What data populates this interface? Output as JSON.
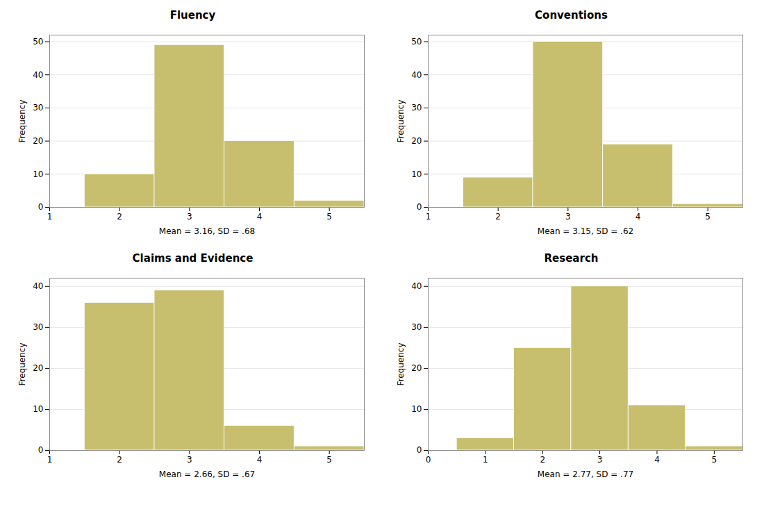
{
  "chart_data": [
    {
      "type": "histogram",
      "title": "Fluency",
      "xlabel": "Mean = 3.16, SD = .68",
      "ylabel": "Frequency",
      "color": "#C8BF6E",
      "bins": [
        1.5,
        2.5,
        3.5,
        4.5,
        5.5
      ],
      "counts": [
        10,
        49,
        20,
        2
      ],
      "xlim": [
        1,
        5.5
      ],
      "ylim": [
        0,
        52
      ],
      "yticks": [
        0,
        10,
        20,
        30,
        40,
        50
      ],
      "xticks": [
        1,
        2,
        3,
        4,
        5
      ],
      "grid": true
    },
    {
      "type": "histogram",
      "title": "Conventions",
      "xlabel": "Mean = 3.15, SD = .62",
      "ylabel": "Frequency",
      "color": "#C8BF6E",
      "bins": [
        1.5,
        2.5,
        3.5,
        4.5,
        5.5
      ],
      "counts": [
        9,
        50,
        19,
        1
      ],
      "xlim": [
        1,
        5.5
      ],
      "ylim": [
        0,
        52
      ],
      "yticks": [
        0,
        10,
        20,
        30,
        40,
        50
      ],
      "xticks": [
        1,
        2,
        3,
        4,
        5
      ],
      "grid": true
    },
    {
      "type": "histogram",
      "title": "Claims and Evidence",
      "xlabel": "Mean = 2.66, SD = .67",
      "ylabel": "Frequency",
      "color": "#C8BF6E",
      "bins": [
        1.5,
        2.5,
        3.5,
        4.5,
        5.5
      ],
      "counts": [
        36,
        39,
        6,
        1
      ],
      "xlim": [
        1,
        5.5
      ],
      "ylim": [
        0,
        42
      ],
      "yticks": [
        0,
        10,
        20,
        30,
        40
      ],
      "xticks": [
        1,
        2,
        3,
        4,
        5
      ],
      "grid": true
    },
    {
      "type": "histogram",
      "title": "Research",
      "xlabel": "Mean = 2.77, SD = .77",
      "ylabel": "Frequency",
      "color": "#C8BF6E",
      "bins": [
        0.5,
        1.5,
        2.5,
        3.5,
        4.5,
        5.5
      ],
      "counts": [
        3,
        25,
        40,
        11,
        1
      ],
      "xlim": [
        0,
        5.5
      ],
      "ylim": [
        0,
        42
      ],
      "yticks": [
        0,
        10,
        20,
        30,
        40
      ],
      "xticks": [
        0,
        1,
        2,
        3,
        4,
        5
      ],
      "grid": true
    }
  ]
}
